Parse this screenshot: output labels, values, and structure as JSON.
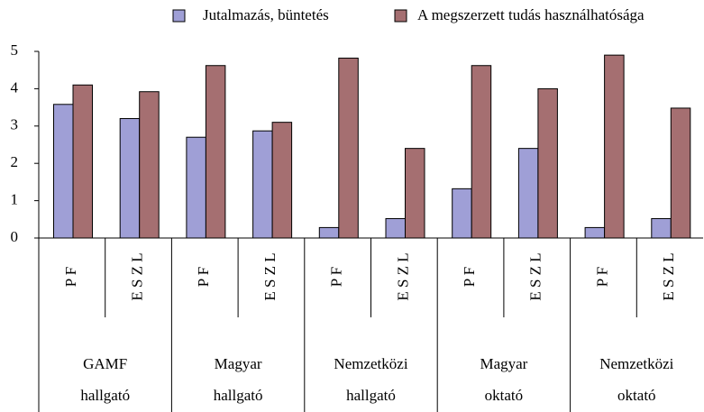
{
  "chart_data": {
    "type": "bar",
    "categories": [
      "P F",
      "E S Z L",
      "P F",
      "E S Z L",
      "P F",
      "E S Z L",
      "P F",
      "E S Z L",
      "P F",
      "E S Z L"
    ],
    "groups": [
      [
        "GAMF",
        "hallgató"
      ],
      [
        "Magyar",
        "hallgató"
      ],
      [
        "Nemzetközi",
        "hallgató"
      ],
      [
        "Magyar",
        "oktató"
      ],
      [
        "Nemzetközi",
        "oktató"
      ]
    ],
    "series": [
      {
        "name": "Jutalmazás, büntetés",
        "color": "#9f9fd6",
        "values": [
          3.58,
          3.2,
          2.7,
          2.87,
          0.28,
          0.52,
          1.32,
          2.4,
          0.28,
          0.52
        ]
      },
      {
        "name": "A megszerzett tudás használhatósága",
        "color": "#a56f71",
        "values": [
          4.1,
          3.92,
          4.62,
          3.1,
          4.82,
          2.4,
          4.62,
          4.0,
          4.9,
          3.48
        ]
      }
    ],
    "ylim": [
      0,
      5
    ],
    "yticks": [
      0,
      1,
      2,
      3,
      4,
      5
    ],
    "legend": "top"
  }
}
